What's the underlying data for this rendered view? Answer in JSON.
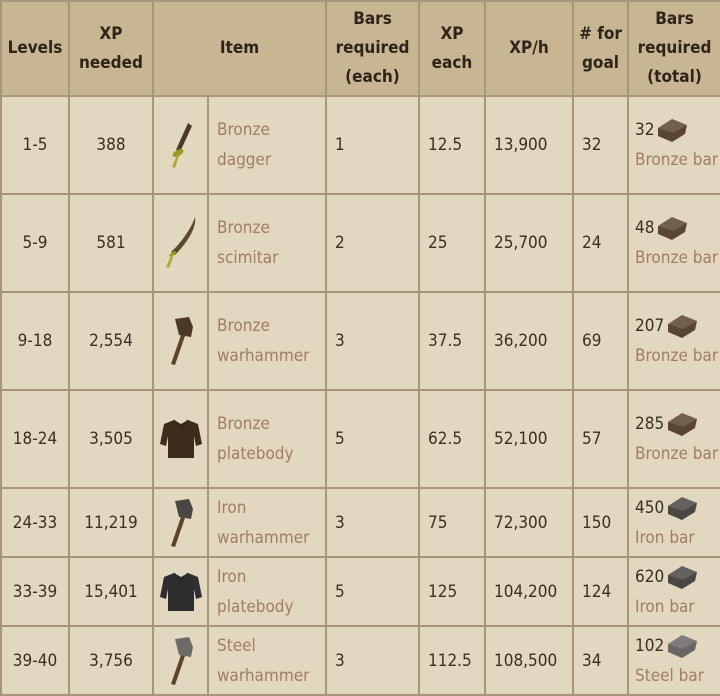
{
  "headers": [
    "Levels",
    "XP needed",
    "Item",
    "Bars required (each)",
    "XP each",
    "XP/h",
    "# for goal",
    "Bars required (total)"
  ],
  "rows": [
    {
      "levels": "1-5",
      "xp_needed": "388",
      "item": "Bronze dagger",
      "item_icon": "bronze-dagger-icon",
      "bars_each": "1",
      "xp_each": "12.5",
      "xp_h": "13,900",
      "for_goal": "32",
      "bars_total": "32",
      "bar_name": "Bronze bar",
      "bar_color": "#5a4530"
    },
    {
      "levels": "5-9",
      "xp_needed": "581",
      "item": "Bronze scimitar",
      "item_icon": "bronze-scimitar-icon",
      "bars_each": "2",
      "xp_each": "25",
      "xp_h": "25,700",
      "for_goal": "24",
      "bars_total": "48",
      "bar_name": "Bronze bar",
      "bar_color": "#5a4530"
    },
    {
      "levels": "9-18",
      "xp_needed": "2,554",
      "item": "Bronze warhammer",
      "item_icon": "bronze-warhammer-icon",
      "bars_each": "3",
      "xp_each": "37.5",
      "xp_h": "36,200",
      "for_goal": "69",
      "bars_total": "207",
      "bar_name": "Bronze bar",
      "bar_color": "#5a4530"
    },
    {
      "levels": "18-24",
      "xp_needed": "3,505",
      "item": "Bronze platebody",
      "item_icon": "bronze-platebody-icon",
      "bars_each": "5",
      "xp_each": "62.5",
      "xp_h": "52,100",
      "for_goal": "57",
      "bars_total": "285",
      "bar_name": "Bronze bar",
      "bar_color": "#5a4530"
    },
    {
      "levels": "24-33",
      "xp_needed": "11,219",
      "item": "Iron warhammer",
      "item_icon": "iron-warhammer-icon",
      "bars_each": "3",
      "xp_each": "75",
      "xp_h": "72,300",
      "for_goal": "150",
      "bars_total": "450",
      "bar_name": "Iron bar",
      "bar_color": "#4a4644"
    },
    {
      "levels": "33-39",
      "xp_needed": "15,401",
      "item": "Iron platebody",
      "item_icon": "iron-platebody-icon",
      "bars_each": "5",
      "xp_each": "125",
      "xp_h": "104,200",
      "for_goal": "124",
      "bars_total": "620",
      "bar_name": "Iron bar",
      "bar_color": "#4a4644"
    },
    {
      "levels": "39-40",
      "xp_needed": "3,756",
      "item": "Steel warhammer",
      "item_icon": "steel-warhammer-icon",
      "bars_each": "3",
      "xp_each": "112.5",
      "xp_h": "108,500",
      "for_goal": "34",
      "bars_total": "102",
      "bar_name": "Steel bar",
      "bar_color": "#6a6664"
    }
  ],
  "colors": {
    "header_bg": "#c8b594",
    "cell_bg": "#e2d7bf",
    "link": "#a07d63",
    "border": "#a8967a"
  }
}
